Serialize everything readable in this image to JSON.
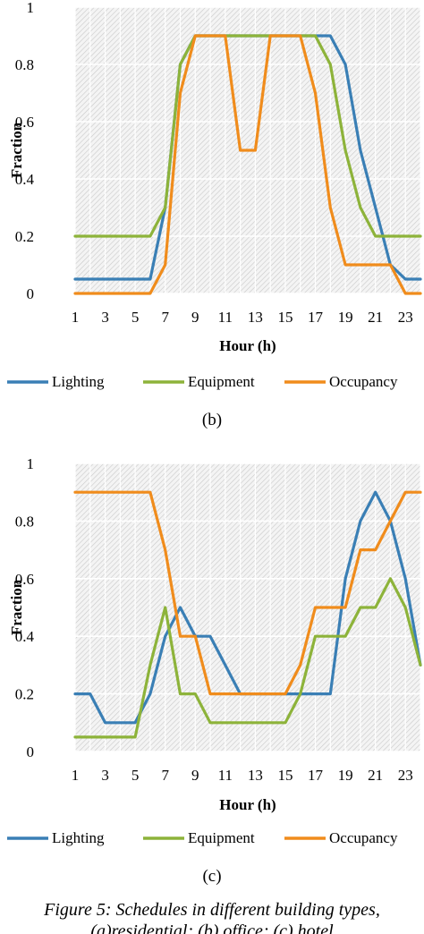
{
  "chart_data": [
    {
      "type": "line",
      "panel_label": "(b)",
      "title": "",
      "xlabel": "Hour (h)",
      "ylabel": "Fraction",
      "x": [
        1,
        2,
        3,
        4,
        5,
        6,
        7,
        8,
        9,
        10,
        11,
        12,
        13,
        14,
        15,
        16,
        17,
        18,
        19,
        20,
        21,
        22,
        23,
        24
      ],
      "xticks": [
        "1",
        "3",
        "5",
        "7",
        "9",
        "11",
        "13",
        "15",
        "17",
        "19",
        "21",
        "23"
      ],
      "yticks": [
        "0",
        "0.2",
        "0.4",
        "0.6",
        "0.8",
        "1"
      ],
      "ylim": [
        0,
        1
      ],
      "grid": true,
      "legend": "bottom",
      "series": [
        {
          "name": "Lighting",
          "color": "#3a7fb5",
          "values": [
            0.05,
            0.05,
            0.05,
            0.05,
            0.05,
            0.05,
            0.3,
            0.8,
            0.9,
            0.9,
            0.9,
            0.9,
            0.9,
            0.9,
            0.9,
            0.9,
            0.9,
            0.9,
            0.8,
            0.5,
            0.3,
            0.1,
            0.05,
            0.05
          ]
        },
        {
          "name": "Equipment",
          "color": "#8db33a",
          "values": [
            0.2,
            0.2,
            0.2,
            0.2,
            0.2,
            0.2,
            0.3,
            0.8,
            0.9,
            0.9,
            0.9,
            0.9,
            0.9,
            0.9,
            0.9,
            0.9,
            0.9,
            0.8,
            0.5,
            0.3,
            0.2,
            0.2,
            0.2,
            0.2
          ]
        },
        {
          "name": "Occupancy",
          "color": "#f08c1c",
          "values": [
            0,
            0,
            0,
            0,
            0,
            0,
            0.1,
            0.7,
            0.9,
            0.9,
            0.9,
            0.5,
            0.5,
            0.9,
            0.9,
            0.9,
            0.7,
            0.3,
            0.1,
            0.1,
            0.1,
            0.1,
            0,
            0
          ]
        }
      ]
    },
    {
      "type": "line",
      "panel_label": "(c)",
      "title": "",
      "xlabel": "Hour (h)",
      "ylabel": "Fraction",
      "x": [
        1,
        2,
        3,
        4,
        5,
        6,
        7,
        8,
        9,
        10,
        11,
        12,
        13,
        14,
        15,
        16,
        17,
        18,
        19,
        20,
        21,
        22,
        23,
        24
      ],
      "xticks": [
        "1",
        "3",
        "5",
        "7",
        "9",
        "11",
        "13",
        "15",
        "17",
        "19",
        "21",
        "23"
      ],
      "yticks": [
        "0",
        "0.2",
        "0.4",
        "0.6",
        "0.8",
        "1"
      ],
      "ylim": [
        0,
        1
      ],
      "grid": true,
      "legend": "bottom",
      "series": [
        {
          "name": "Lighting",
          "color": "#3a7fb5",
          "values": [
            0.2,
            0.2,
            0.1,
            0.1,
            0.1,
            0.2,
            0.4,
            0.5,
            0.4,
            0.4,
            0.3,
            0.2,
            0.2,
            0.2,
            0.2,
            0.2,
            0.2,
            0.2,
            0.6,
            0.8,
            0.9,
            0.8,
            0.6,
            0.3
          ]
        },
        {
          "name": "Equipment",
          "color": "#8db33a",
          "values": [
            0.05,
            0.05,
            0.05,
            0.05,
            0.05,
            0.3,
            0.5,
            0.2,
            0.2,
            0.1,
            0.1,
            0.1,
            0.1,
            0.1,
            0.1,
            0.2,
            0.4,
            0.4,
            0.4,
            0.5,
            0.5,
            0.6,
            0.5,
            0.3
          ]
        },
        {
          "name": "Occupancy",
          "color": "#f08c1c",
          "values": [
            0.9,
            0.9,
            0.9,
            0.9,
            0.9,
            0.9,
            0.7,
            0.4,
            0.4,
            0.2,
            0.2,
            0.2,
            0.2,
            0.2,
            0.2,
            0.3,
            0.5,
            0.5,
            0.5,
            0.7,
            0.7,
            0.8,
            0.9,
            0.9
          ]
        }
      ]
    }
  ],
  "caption_line1": "Figure 5: Schedules in different building types,",
  "caption_line2": "(a)residential; (b) office; (c) hotel"
}
